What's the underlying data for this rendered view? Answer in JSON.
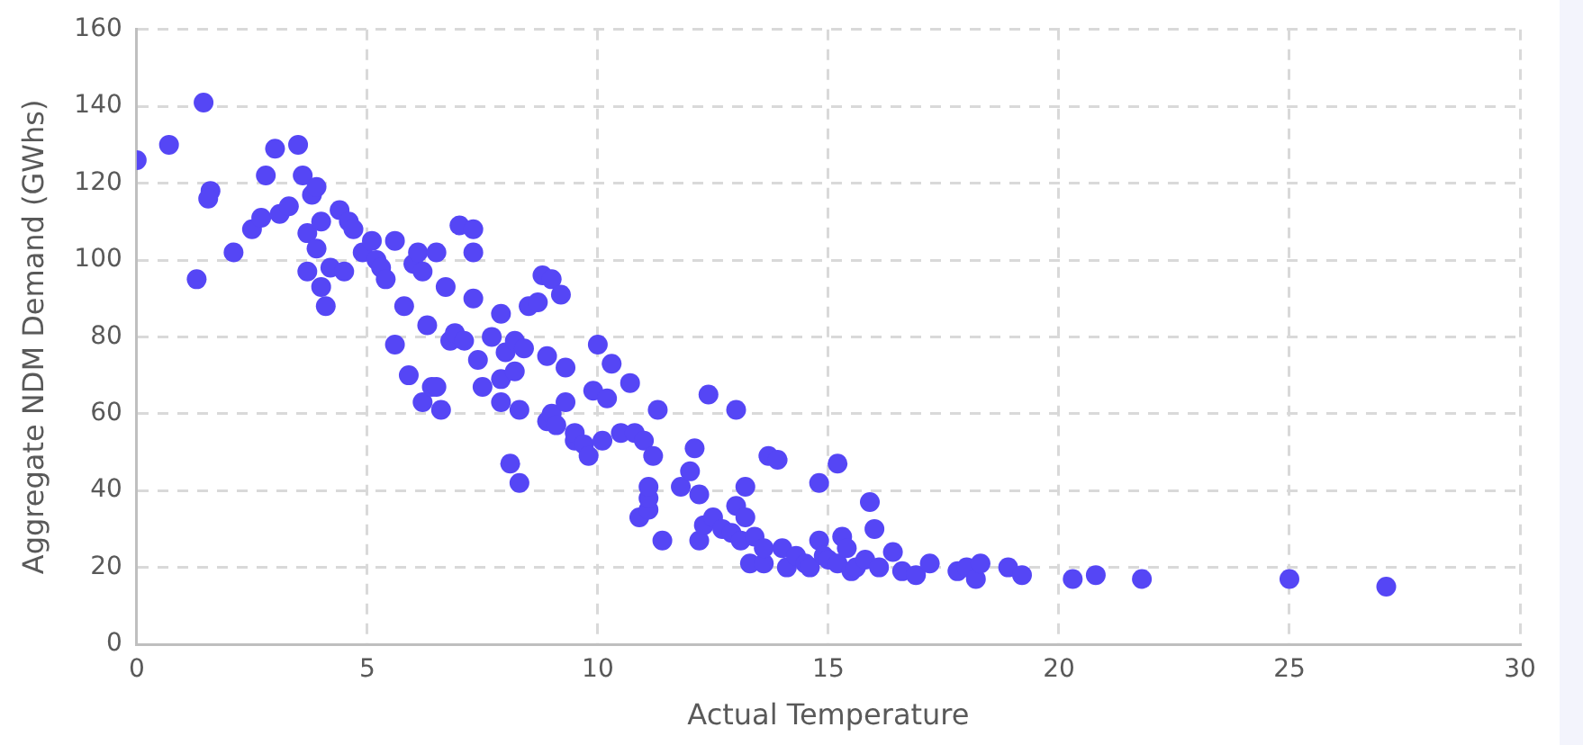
{
  "chart_data": {
    "type": "scatter",
    "xlabel": "Actual Temperature",
    "ylabel": "Aggregate NDM Demand (GWhs)",
    "xlim": [
      0,
      30
    ],
    "xticks": [
      0,
      5,
      10,
      15,
      20,
      25,
      30
    ],
    "ylim": [
      0,
      160
    ],
    "yticks": [
      0,
      20,
      40,
      60,
      80,
      100,
      120,
      140,
      160
    ],
    "grid": true,
    "marker": "circle",
    "series": [
      {
        "color": "#5546f5",
        "x": [
          0,
          0.7,
          1.45,
          1.3,
          1.6,
          1.55,
          2.1,
          2.5,
          2.7,
          2.8,
          3.0,
          3.1,
          3.3,
          3.5,
          3.6,
          3.7,
          3.7,
          3.8,
          3.9,
          3.9,
          4.0,
          4.0,
          4.1,
          4.2,
          4.4,
          4.5,
          4.6,
          4.7,
          4.9,
          5.1,
          5.2,
          5.3,
          5.4,
          5.6,
          5.6,
          5.8,
          5.9,
          6.0,
          6.1,
          6.2,
          6.2,
          6.3,
          6.4,
          6.5,
          6.5,
          6.6,
          6.7,
          6.8,
          6.9,
          7.0,
          7.1,
          7.3,
          7.3,
          7.3,
          7.4,
          7.5,
          7.7,
          7.9,
          7.9,
          7.9,
          8.0,
          8.1,
          8.2,
          8.2,
          8.3,
          8.3,
          8.4,
          8.5,
          8.7,
          8.8,
          8.9,
          8.9,
          9.0,
          9.0,
          9.1,
          9.2,
          9.3,
          9.3,
          9.5,
          9.5,
          9.7,
          9.8,
          9.9,
          10.0,
          10.1,
          10.2,
          10.3,
          10.5,
          10.7,
          10.8,
          10.9,
          11.0,
          11.1,
          11.1,
          11.1,
          11.2,
          11.3,
          11.4,
          11.8,
          12.0,
          12.1,
          12.2,
          12.2,
          12.3,
          12.4,
          12.5,
          12.7,
          12.9,
          13.0,
          13.0,
          13.1,
          13.2,
          13.2,
          13.3,
          13.4,
          13.6,
          13.6,
          13.7,
          13.9,
          14.0,
          14.1,
          14.3,
          14.5,
          14.6,
          14.8,
          14.8,
          14.9,
          15.0,
          15.2,
          15.2,
          15.3,
          15.4,
          15.5,
          15.6,
          15.8,
          15.9,
          16.0,
          16.1,
          16.4,
          16.6,
          16.9,
          17.2,
          17.8,
          18.0,
          18.2,
          18.3,
          18.9,
          19.2,
          20.3,
          20.8,
          21.8,
          25.0,
          27.1
        ],
        "values": [
          126,
          130,
          141,
          95,
          118,
          116,
          102,
          108,
          111,
          122,
          129,
          112,
          114,
          130,
          122,
          107,
          97,
          117,
          119,
          103,
          110,
          93,
          88,
          98,
          113,
          97,
          110,
          108,
          102,
          105,
          100,
          98,
          95,
          105,
          78,
          88,
          70,
          99,
          102,
          63,
          97,
          83,
          67,
          102,
          67,
          61,
          93,
          79,
          81,
          109,
          79,
          108,
          102,
          90,
          74,
          67,
          80,
          86,
          69,
          63,
          76,
          47,
          71,
          79,
          42,
          61,
          77,
          88,
          89,
          96,
          58,
          75,
          95,
          60,
          57,
          91,
          72,
          63,
          53,
          55,
          52,
          49,
          66,
          78,
          53,
          64,
          73,
          55,
          68,
          55,
          33,
          53,
          35,
          38,
          41,
          49,
          61,
          27,
          41,
          45,
          51,
          27,
          39,
          31,
          65,
          33,
          30,
          29,
          61,
          36,
          27,
          33,
          41,
          21,
          28,
          21,
          25,
          49,
          48,
          25,
          20,
          23,
          21,
          20,
          27,
          42,
          23,
          22,
          47,
          21,
          28,
          25,
          19,
          20,
          22,
          37,
          30,
          20,
          24,
          19,
          18,
          21,
          19,
          20,
          17,
          21,
          20,
          18,
          17,
          18,
          17,
          17,
          15
        ]
      }
    ]
  }
}
